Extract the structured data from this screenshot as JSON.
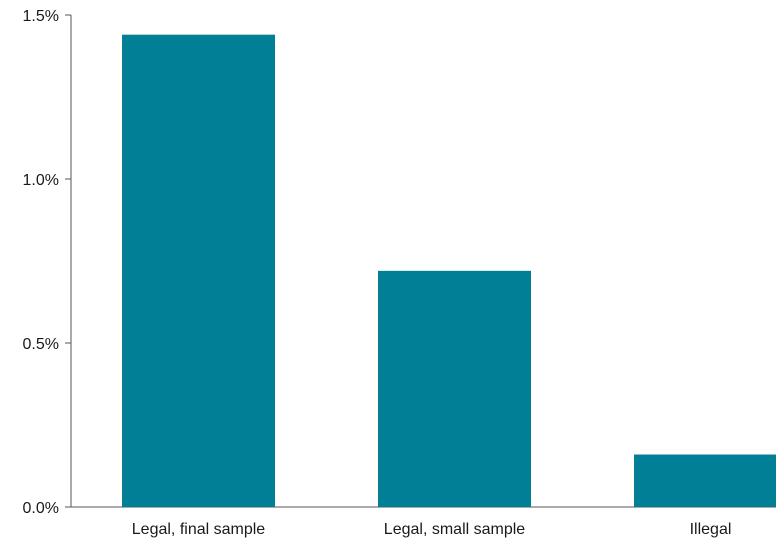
{
  "chart_data": {
    "type": "bar",
    "title": "",
    "xlabel": "",
    "ylabel": "",
    "categories": [
      "Legal, final sample",
      "Legal, small sample",
      "Illegal"
    ],
    "values": [
      1.44,
      0.72,
      0.16
    ],
    "ylim": [
      0,
      1.5
    ],
    "yticks": [
      {
        "value": 0.0,
        "label": "0.0%"
      },
      {
        "value": 0.5,
        "label": "0.5%"
      },
      {
        "value": 1.0,
        "label": "1.0%"
      },
      {
        "value": 1.5,
        "label": "1.5%"
      }
    ],
    "grid": false,
    "legend": "none",
    "bar_color": "#007f96",
    "axis_color": "#555555"
  }
}
